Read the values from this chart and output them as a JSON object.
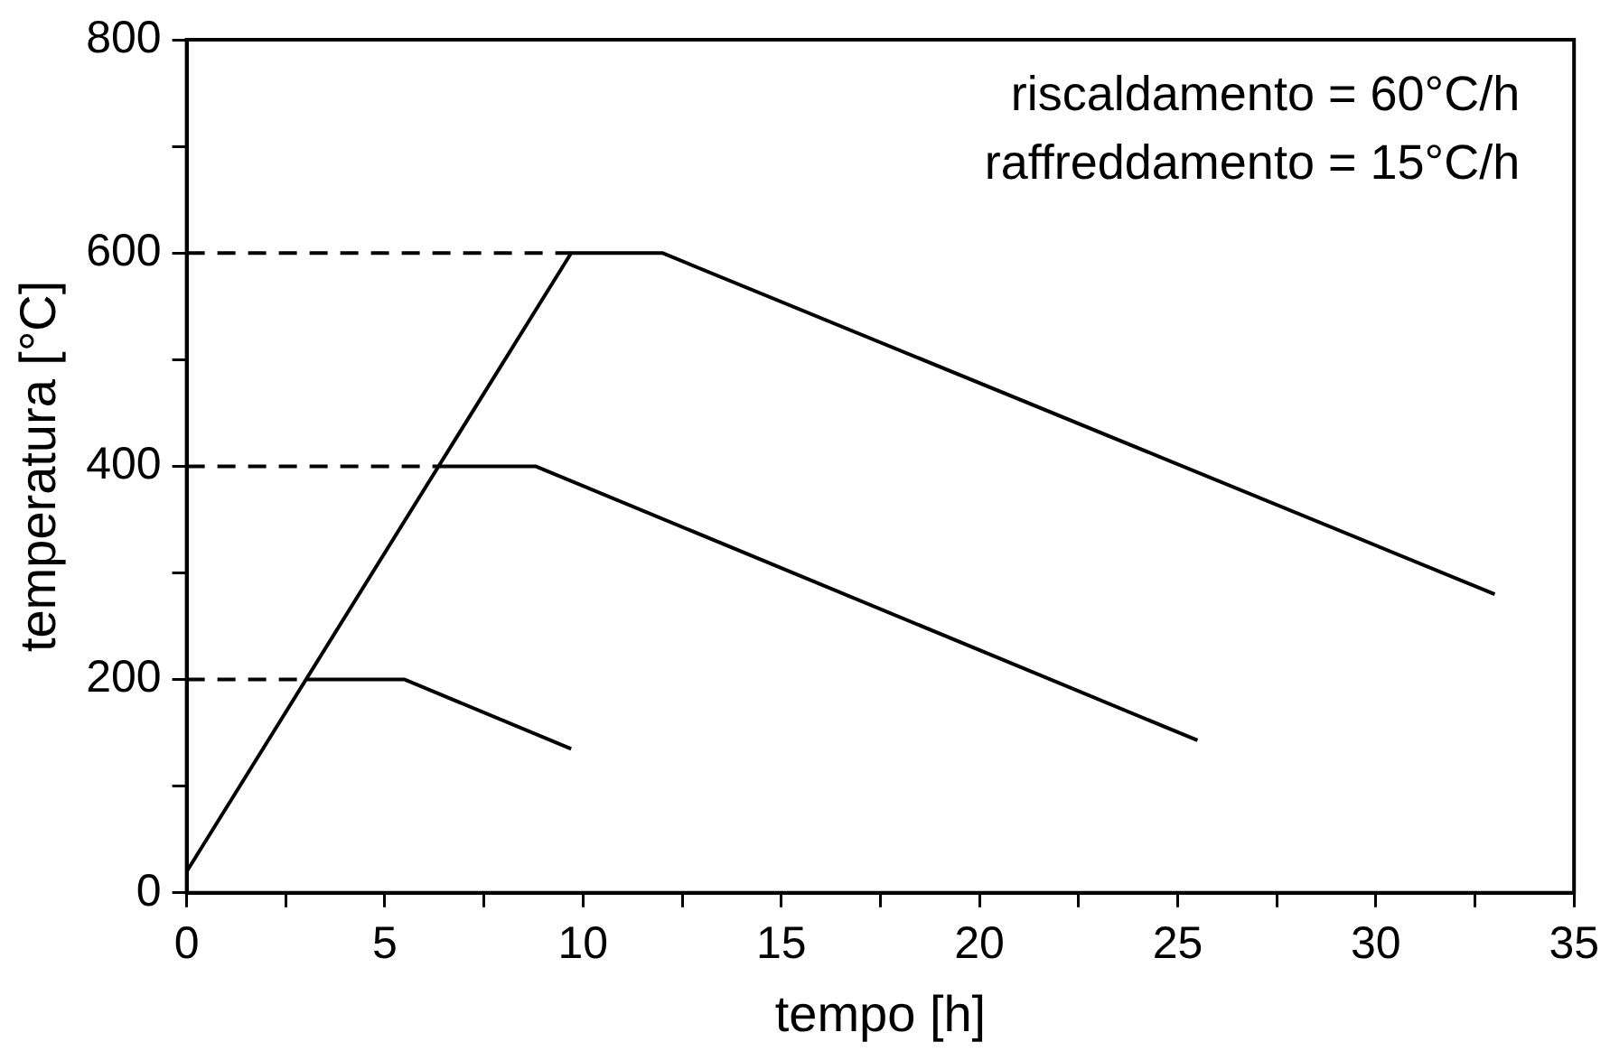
{
  "chart_data": {
    "type": "line",
    "xlabel": "tempo [h]",
    "ylabel": "temperatura [°C]",
    "annotations": [
      "riscaldamento = 60°C/h",
      "raffreddamento = 15°C/h"
    ],
    "xlim": [
      0,
      35
    ],
    "ylim": [
      0,
      800
    ],
    "xticks": [
      0,
      {
        "value": 2.5,
        "label": null
      },
      5,
      {
        "value": 7.5,
        "label": null
      },
      10,
      {
        "value": 12.5,
        "label": null
      },
      15,
      {
        "value": 17.5,
        "label": null
      },
      20,
      {
        "value": 22.5,
        "label": null
      },
      25,
      {
        "value": 27.5,
        "label": null
      },
      30,
      {
        "value": 32.5,
        "label": null
      },
      35
    ],
    "yticks": [
      0,
      {
        "value": 100,
        "label": null
      },
      200,
      {
        "value": 300,
        "label": null
      },
      400,
      {
        "value": 500,
        "label": null
      },
      600,
      {
        "value": 700,
        "label": null
      },
      800
    ],
    "grid": false,
    "legend": false,
    "marker": "none",
    "series": [
      {
        "color": "#000000",
        "line_style": "solid",
        "x": [
          0,
          9.7,
          12,
          33
        ],
        "values": [
          20,
          600,
          600,
          280
        ]
      },
      {
        "color": "#000000",
        "line_style": "solid",
        "x": [
          6.3,
          8.8,
          25.5
        ],
        "values": [
          400,
          400,
          143
        ]
      },
      {
        "color": "#000000",
        "line_style": "solid",
        "x": [
          3,
          5.5,
          9.7
        ],
        "values": [
          200,
          200,
          135
        ]
      },
      {
        "color": "#000000",
        "line_style": "dashed",
        "x": [
          0,
          9.7
        ],
        "values": [
          600,
          600
        ]
      },
      {
        "color": "#000000",
        "line_style": "dashed",
        "x": [
          0,
          6.3
        ],
        "values": [
          400,
          400
        ]
      },
      {
        "color": "#000000",
        "line_style": "dashed",
        "x": [
          0,
          3
        ],
        "values": [
          200,
          200
        ]
      }
    ]
  }
}
